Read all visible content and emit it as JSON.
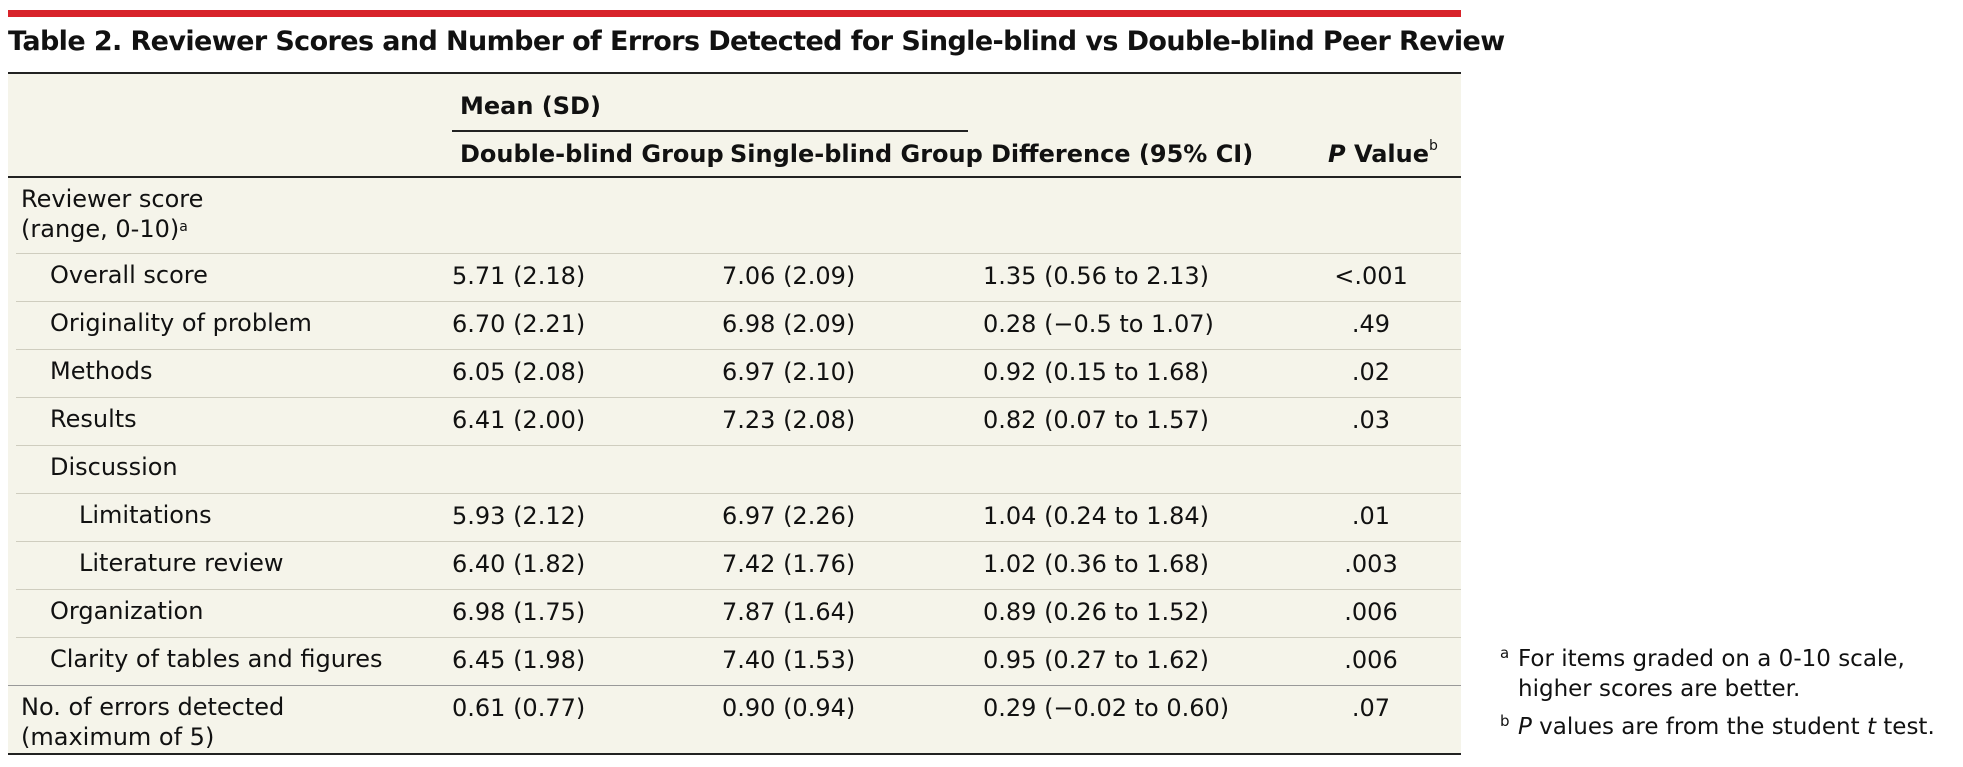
{
  "title": "Table 2. Reviewer Scores and Number of Errors Detected for Single-blind vs Double-blind Peer Review",
  "header": {
    "group_label": "Mean (SD)",
    "col1": "Double-blind Group",
    "col2": "Single-blind Group",
    "col3": "Difference (95% CI)",
    "col4_italic": "P",
    "col4_rest": " Value",
    "col4_sup": "b"
  },
  "rows": [
    {
      "label_line1": "Reviewer score",
      "label_line2": "(range, 0-10)",
      "label_sup": "a",
      "double_blind": "",
      "single_blind": "",
      "difference": "",
      "p_value": ""
    },
    {
      "label": "Overall score",
      "double_blind": "5.71 (2.18)",
      "single_blind": "7.06 (2.09)",
      "difference": "1.35 (0.56 to 2.13)",
      "p_value": "<.001"
    },
    {
      "label": "Originality of problem",
      "double_blind": "6.70 (2.21)",
      "single_blind": "6.98 (2.09)",
      "difference": "0.28 (−0.5 to 1.07)",
      "p_value": ".49"
    },
    {
      "label": "Methods",
      "double_blind": "6.05 (2.08)",
      "single_blind": "6.97 (2.10)",
      "difference": "0.92 (0.15 to 1.68)",
      "p_value": ".02"
    },
    {
      "label": "Results",
      "double_blind": "6.41 (2.00)",
      "single_blind": "7.23 (2.08)",
      "difference": "0.82 (0.07 to 1.57)",
      "p_value": ".03"
    },
    {
      "label": "Discussion",
      "double_blind": "",
      "single_blind": "",
      "difference": "",
      "p_value": ""
    },
    {
      "label": "Limitations",
      "double_blind": "5.93 (2.12)",
      "single_blind": "6.97 (2.26)",
      "difference": "1.04 (0.24 to 1.84)",
      "p_value": ".01"
    },
    {
      "label": "Literature review",
      "double_blind": "6.40 (1.82)",
      "single_blind": "7.42 (1.76)",
      "difference": "1.02 (0.36 to 1.68)",
      "p_value": ".003"
    },
    {
      "label": "Organization",
      "double_blind": "6.98 (1.75)",
      "single_blind": "7.87 (1.64)",
      "difference": "0.89 (0.26 to 1.52)",
      "p_value": ".006"
    },
    {
      "label": "Clarity of tables and figures",
      "double_blind": "6.45 (1.98)",
      "single_blind": "7.40 (1.53)",
      "difference": "0.95 (0.27 to 1.62)",
      "p_value": ".006"
    },
    {
      "label_line1": "No. of errors detected",
      "label_line2": "(maximum of 5)",
      "double_blind": "0.61 (0.77)",
      "single_blind": "0.90 (0.94)",
      "difference": "0.29 (−0.02 to 0.60)",
      "p_value": ".07"
    }
  ],
  "footnotes": {
    "a_mark": "a",
    "a_text_line1": "For items graded on a 0-10 scale,",
    "a_text_line2": "higher scores are better.",
    "b_mark": "b",
    "b_italic_p": "P",
    "b_text_mid": " values are from the student ",
    "b_italic_t": "t",
    "b_text_end": " test."
  }
}
